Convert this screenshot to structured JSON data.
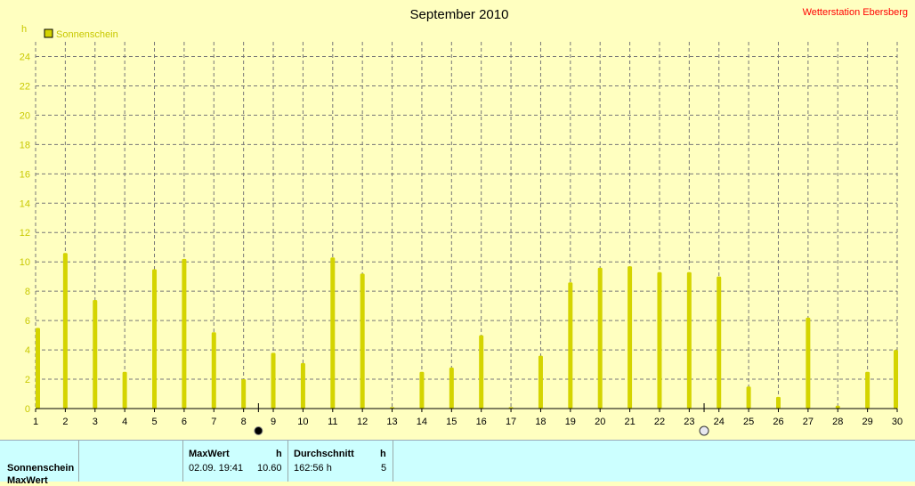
{
  "header": {
    "title": "September 2010",
    "station": "Wetterstation Ebersberg"
  },
  "colors": {
    "background": "#ffffc0",
    "bar": "#d4d400",
    "axis_text": "#c8c800",
    "station_text": "#ff0000",
    "stats_background": "#ccffff"
  },
  "chart_data": {
    "type": "bar",
    "title": "September 2010",
    "ylabel": "h",
    "ylim": [
      0,
      25
    ],
    "yticks": [
      0,
      2,
      4,
      6,
      8,
      10,
      12,
      14,
      16,
      18,
      20,
      22,
      24
    ],
    "categories": [
      "1",
      "2",
      "3",
      "4",
      "5",
      "6",
      "7",
      "8",
      "9",
      "10",
      "11",
      "12",
      "13",
      "14",
      "15",
      "16",
      "17",
      "18",
      "19",
      "20",
      "21",
      "22",
      "23",
      "24",
      "25",
      "26",
      "27",
      "28",
      "29",
      "30"
    ],
    "series": [
      {
        "name": "Sonnenschein",
        "values": [
          5.5,
          10.6,
          7.4,
          2.5,
          9.5,
          10.2,
          5.2,
          2.0,
          3.8,
          3.1,
          10.3,
          9.2,
          0.1,
          2.5,
          2.8,
          5.0,
          0.1,
          3.6,
          8.6,
          9.6,
          9.7,
          9.3,
          9.3,
          9.0,
          1.5,
          0.8,
          6.2,
          0.2,
          2.5,
          4.0
        ]
      }
    ],
    "grid": true,
    "legend": "top-left",
    "markers": [
      {
        "type": "new-moon",
        "day": 8.5
      },
      {
        "type": "full-moon",
        "day": 23.5
      }
    ]
  },
  "stats": {
    "row_label": "Sonnenschein",
    "row_label_2": "MaxWert",
    "max_header": "MaxWert",
    "max_unit": "h",
    "max_time": "02.09.  19:41",
    "max_value": "10.60",
    "avg_header": "Durchschnitt",
    "avg_unit": "h",
    "avg_value": "162:56 h",
    "avg_count": "5"
  }
}
